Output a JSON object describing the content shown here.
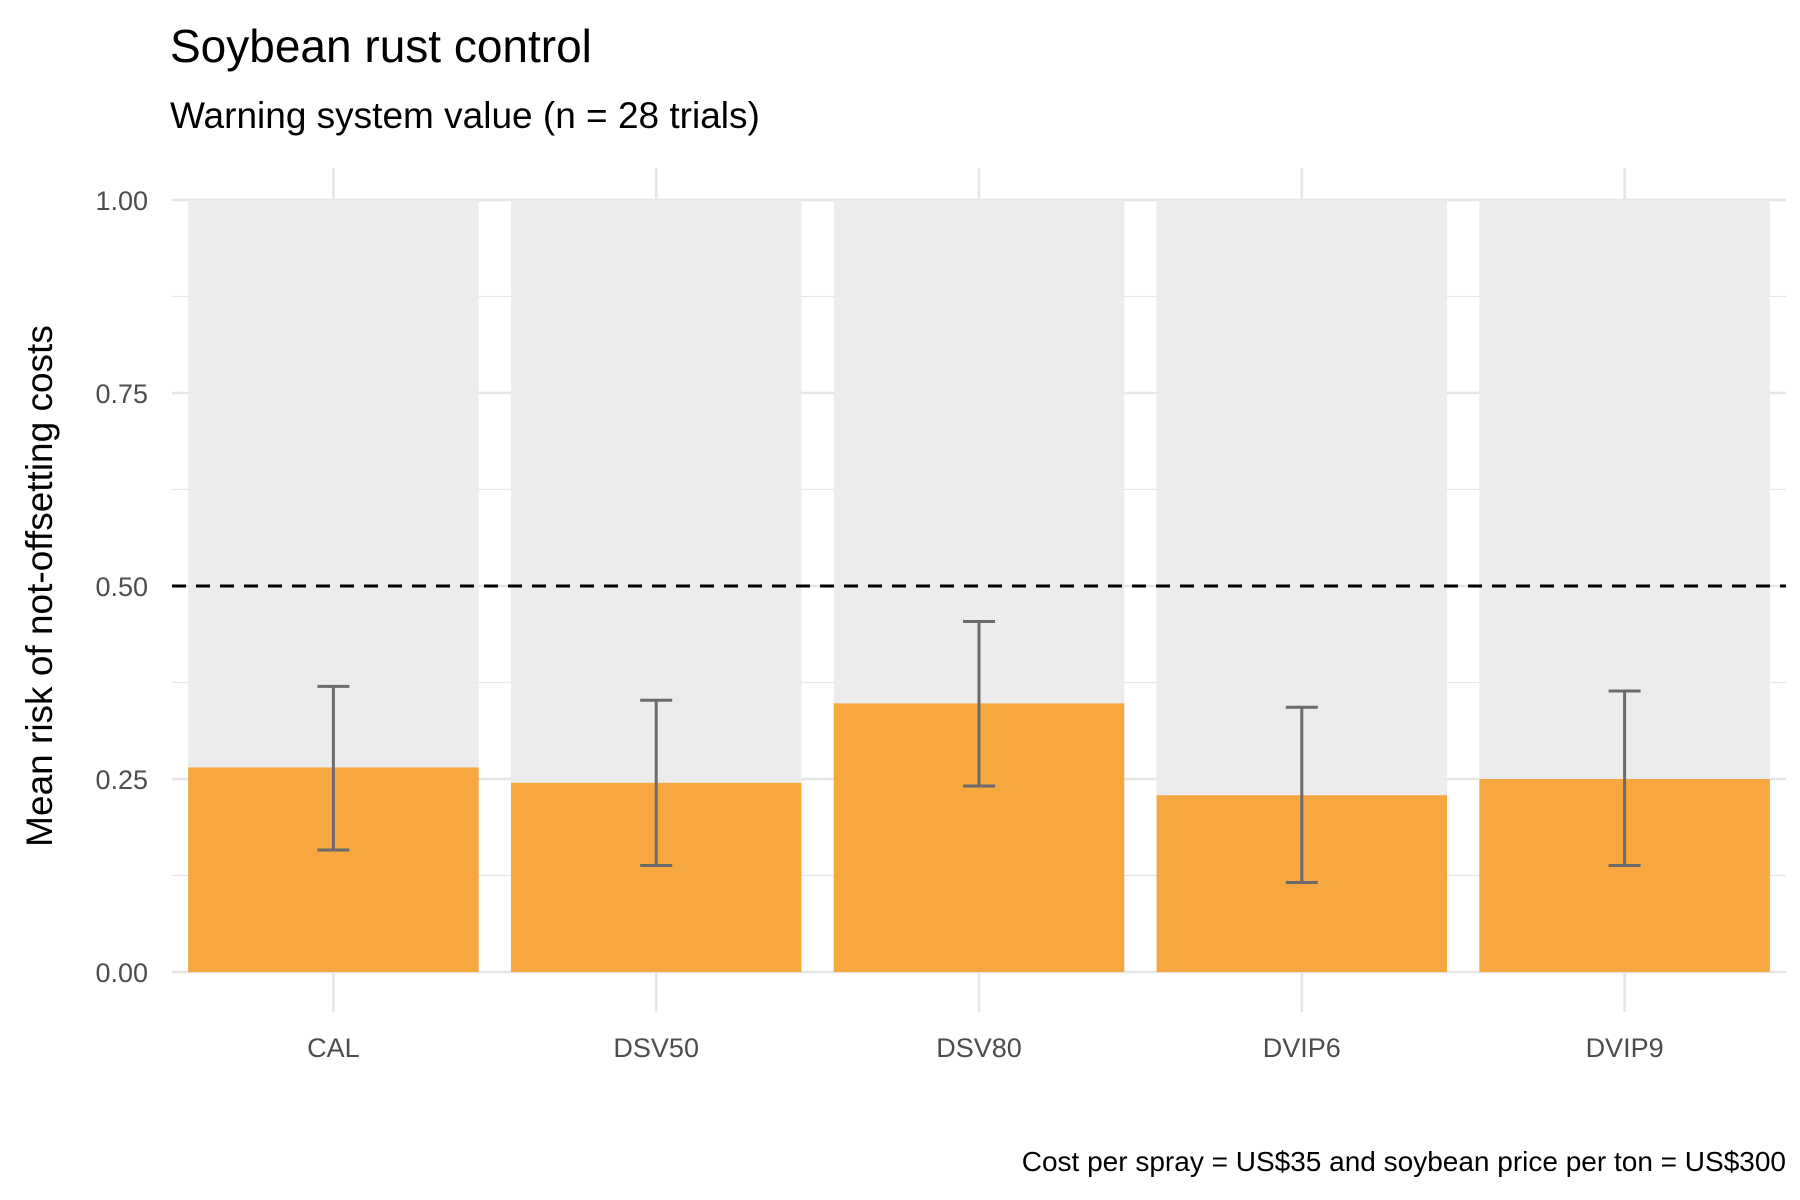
{
  "chart_data": {
    "type": "bar",
    "title": "Soybean rust control",
    "subtitle": "Warning system value (n = 28 trials)",
    "xlabel": "",
    "ylabel": "Mean risk of not-offsetting costs",
    "caption": "Cost per spray = US$35 and soybean price per ton = US$300",
    "categories": [
      "CAL",
      "DSV50",
      "DSV80",
      "DVIP6",
      "DVIP9"
    ],
    "values": [
      0.265,
      0.245,
      0.348,
      0.229,
      0.25
    ],
    "error_low": [
      0.158,
      0.138,
      0.241,
      0.116,
      0.138
    ],
    "error_high": [
      0.37,
      0.352,
      0.454,
      0.343,
      0.364
    ],
    "background_value": 1.0,
    "reference_line": 0.5,
    "ylim": [
      0,
      1
    ],
    "yticks": [
      0,
      0.25,
      0.5,
      0.75,
      1
    ],
    "ytick_labels": [
      "0.00",
      "0.25",
      "0.50",
      "0.75",
      "1.00"
    ],
    "grid": true,
    "legend": "none",
    "colors": {
      "bar": "#F7A336",
      "background_bar": "#EBEBEB",
      "error_bar": "#6B6B6B",
      "grid": "#E6E6E6",
      "reference_line": "#000000"
    }
  }
}
